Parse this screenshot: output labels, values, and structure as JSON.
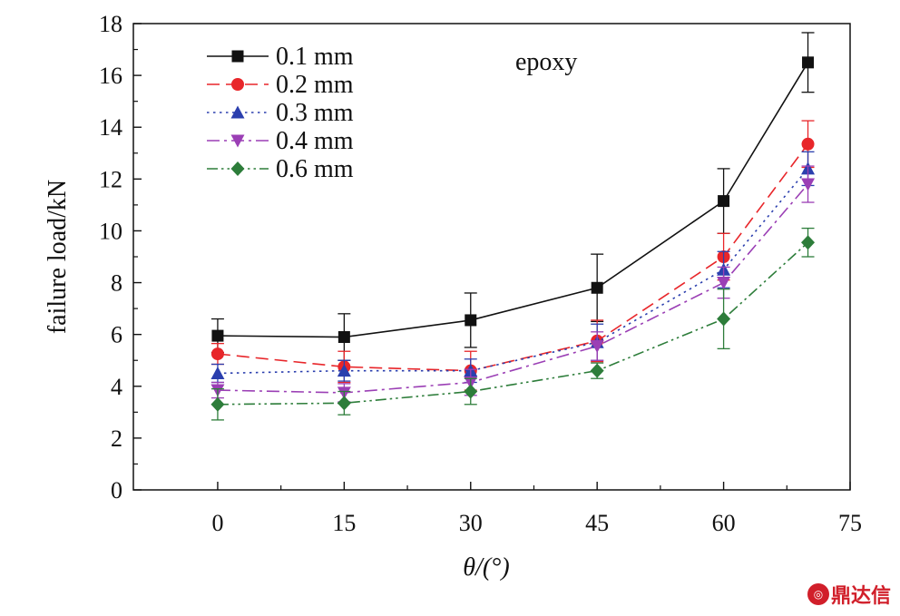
{
  "chart_data": {
    "type": "line",
    "xlabel": "θ/(°)",
    "ylabel": "failure load/kN",
    "annotation": "epoxy",
    "xlim": [
      -10,
      75
    ],
    "ylim": [
      0,
      18
    ],
    "xticks": [
      0,
      15,
      30,
      45,
      60,
      75
    ],
    "yticks": [
      0,
      2,
      4,
      6,
      8,
      10,
      12,
      14,
      16,
      18
    ],
    "grid": false,
    "legend_position": "top-left",
    "x": [
      0,
      15,
      30,
      45,
      60,
      70
    ],
    "series": [
      {
        "name": "0.1 mm",
        "color": "#111111",
        "dash": "solid",
        "marker": "square",
        "values": [
          5.95,
          5.9,
          6.55,
          7.8,
          11.15,
          16.5
        ],
        "errors": [
          0.65,
          0.9,
          1.05,
          1.3,
          1.25,
          1.15
        ]
      },
      {
        "name": "0.2 mm",
        "color": "#e8262a",
        "dash": "dashed",
        "marker": "circle",
        "values": [
          5.25,
          4.75,
          4.6,
          5.75,
          9.0,
          13.35
        ],
        "errors": [
          0.4,
          0.6,
          0.75,
          0.8,
          0.9,
          0.9
        ]
      },
      {
        "name": "0.3 mm",
        "color": "#2b3fae",
        "dash": "dotted",
        "marker": "triangle-up",
        "values": [
          4.5,
          4.6,
          4.6,
          5.7,
          8.5,
          12.4
        ],
        "errors": [
          0.35,
          0.4,
          0.45,
          0.7,
          0.7,
          0.65
        ]
      },
      {
        "name": "0.4 mm",
        "color": "#9b3fb5",
        "dash": "dashdot",
        "marker": "triangle-down",
        "values": [
          3.85,
          3.75,
          4.15,
          5.55,
          8.0,
          11.8
        ],
        "errors": [
          0.3,
          0.35,
          0.5,
          0.55,
          0.6,
          0.7
        ]
      },
      {
        "name": "0.6 mm",
        "color": "#2d7d3a",
        "dash": "dashdotdot",
        "marker": "diamond",
        "values": [
          3.3,
          3.35,
          3.8,
          4.6,
          6.6,
          9.55
        ],
        "errors": [
          0.6,
          0.45,
          0.5,
          0.3,
          1.15,
          0.55
        ]
      }
    ]
  },
  "watermark": {
    "text": "鼎达信",
    "icon": "dingdaxin-logo-icon"
  }
}
